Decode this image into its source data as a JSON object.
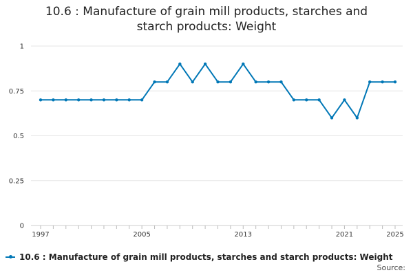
{
  "chart_data": {
    "type": "line",
    "title": "10.6 : Manufacture of grain mill products, starches and starch products: Weight",
    "title_lines": [
      "10.6 : Manufacture of grain mill products, starches and",
      "starch products: Weight"
    ],
    "x": [
      1997,
      1998,
      1999,
      2000,
      2001,
      2002,
      2003,
      2004,
      2005,
      2006,
      2007,
      2008,
      2009,
      2010,
      2011,
      2012,
      2013,
      2014,
      2015,
      2016,
      2017,
      2018,
      2019,
      2020,
      2021,
      2022,
      2023,
      2024,
      2025
    ],
    "x_tick_labels": [
      "1997",
      "2005",
      "2013",
      "2021",
      "2025"
    ],
    "x_ticks": [
      1997,
      2005,
      2013,
      2021,
      2025
    ],
    "series": [
      {
        "name": "10.6 : Manufacture of grain mill products, starches and starch products: Weight",
        "values": [
          0.7,
          0.7,
          0.7,
          0.7,
          0.7,
          0.7,
          0.7,
          0.7,
          0.7,
          0.8,
          0.8,
          0.9,
          0.8,
          0.9,
          0.8,
          0.8,
          0.9,
          0.8,
          0.8,
          0.8,
          0.7,
          0.7,
          0.7,
          0.6,
          0.7,
          0.6,
          0.8,
          0.8,
          0.8
        ],
        "color": "#0077b6"
      }
    ],
    "y_ticks": [
      0,
      0.25,
      0.5,
      0.75,
      1
    ],
    "y_tick_labels": [
      "0",
      "0.25",
      "0.5",
      "0.75",
      "1"
    ],
    "ylim": [
      0,
      1
    ],
    "xlim": [
      1997,
      2025
    ],
    "xlabel": "",
    "ylabel": "",
    "grid": "horizontal",
    "legend": "bottom-left",
    "gridline_color": "#e5e5e5"
  },
  "legend_label": "10.6 : Manufacture of grain mill products, starches and starch products: Weight",
  "source_label": "Source:"
}
